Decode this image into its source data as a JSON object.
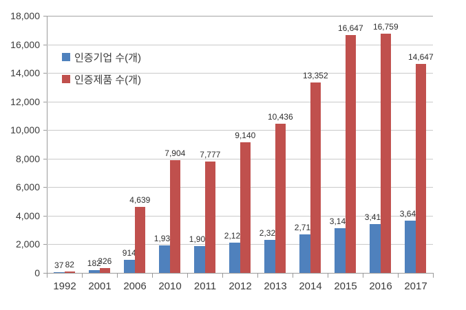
{
  "chart_data": {
    "type": "bar",
    "title": "",
    "xlabel": "",
    "ylabel": "",
    "categories": [
      "1992",
      "2001",
      "2006",
      "2010",
      "2011",
      "2012",
      "2013",
      "2014",
      "2015",
      "2016",
      "2017"
    ],
    "series": [
      {
        "name": "인증기업 수(개)",
        "color": "#4f81bd",
        "values": [
          37,
          182,
          914,
          1933,
          1900,
          2129,
          2323,
          2718,
          3142,
          3419,
          3643
        ],
        "labels": [
          "37",
          "182",
          "914",
          "1,933",
          "1,900",
          "2,129",
          "2,323",
          "2,718",
          "3,142",
          "3,419",
          "3,643"
        ]
      },
      {
        "name": "인증제품 수(개)",
        "color": "#c0504d",
        "values": [
          82,
          326,
          4639,
          7904,
          7777,
          9140,
          10436,
          13352,
          16647,
          16759,
          14647
        ],
        "labels": [
          "82",
          "326",
          "4,639",
          "7,904",
          "7,777",
          "9,140",
          "10,436",
          "13,352",
          "16,647",
          "16,759",
          "14,647"
        ]
      }
    ],
    "ylim": [
      0,
      18000
    ],
    "ytick_interval": 2000,
    "ytick_labels": [
      "0",
      "2,000",
      "4,000",
      "6,000",
      "8,000",
      "10,000",
      "12,000",
      "14,000",
      "16,000",
      "18,000"
    ],
    "grid": true,
    "legend_position": "inside-top-left"
  },
  "colors": {
    "series_company": "#4f81bd",
    "series_product": "#c0504d",
    "gridline": "#c9c9c9",
    "axis": "#9a9a9a",
    "text": "#3a3a3a",
    "background": "#ffffff"
  }
}
